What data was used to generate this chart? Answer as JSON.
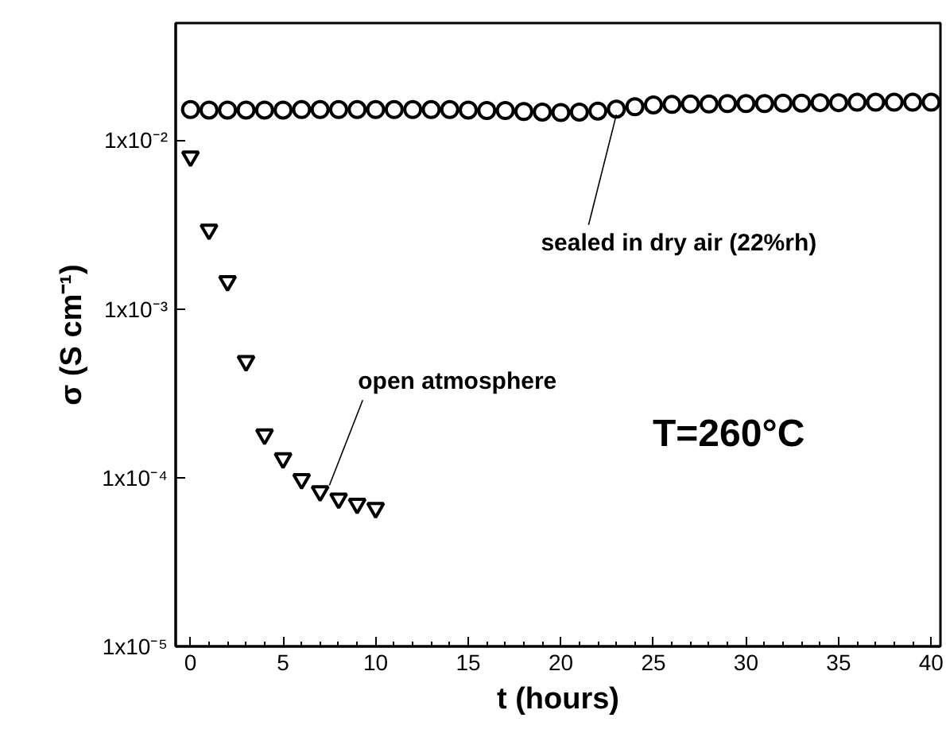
{
  "chart_data": {
    "type": "scatter",
    "xlabel": "t (hours)",
    "ylabel": "σ (S cm⁻¹)",
    "log": "y",
    "grid": false,
    "xlim": [
      -0.8,
      40.5
    ],
    "xticks": [
      0,
      5,
      10,
      15,
      20,
      25,
      30,
      35,
      40
    ],
    "ylim": [
      1e-05,
      0.0495
    ],
    "yticks": [
      {
        "value": 1e-05,
        "label": "1x10⁻⁵"
      },
      {
        "value": 0.0001,
        "label": "1x10⁻⁴"
      },
      {
        "value": 0.001,
        "label": "1x10⁻³"
      },
      {
        "value": 0.01,
        "label": "1x10⁻²"
      }
    ],
    "series": [
      {
        "color": "#000000",
        "marker": "circle",
        "x": [
          0,
          1,
          2,
          3,
          4,
          5,
          6,
          7,
          8,
          9,
          10,
          11,
          12,
          13,
          14,
          15,
          16,
          17,
          18,
          19,
          20,
          21,
          22,
          23,
          24,
          25,
          26,
          27,
          28,
          29,
          30,
          31,
          32,
          33,
          34,
          35,
          36,
          37,
          38,
          39,
          40
        ],
        "values": [
          0.0152,
          0.0151,
          0.0151,
          0.0151,
          0.0151,
          0.0151,
          0.0152,
          0.0152,
          0.0152,
          0.0152,
          0.0152,
          0.0152,
          0.0152,
          0.0152,
          0.0152,
          0.0151,
          0.015,
          0.015,
          0.0148,
          0.0147,
          0.0146,
          0.0147,
          0.0149,
          0.0153,
          0.0158,
          0.0162,
          0.0163,
          0.0164,
          0.0164,
          0.0165,
          0.0165,
          0.0165,
          0.0166,
          0.0166,
          0.0167,
          0.0167,
          0.0168,
          0.0168,
          0.0168,
          0.0168,
          0.0168
        ]
      },
      {
        "color": "#000000",
        "marker": "triangle",
        "x": [
          0,
          1,
          2,
          3,
          4,
          5,
          6,
          7,
          8,
          9,
          10
        ],
        "values": [
          0.008,
          0.00295,
          0.00146,
          0.00049,
          0.00018,
          0.00013,
          9.8e-05,
          8.3e-05,
          7.5e-05,
          7e-05,
          6.6e-05
        ]
      }
    ],
    "annotations": [
      {
        "text": "open atmosphere",
        "x": 7.5,
        "y": 9e-05
      },
      {
        "text": "sealed in dry air (22%rh)",
        "x": 23,
        "y": 0.0142
      },
      "T=260°C"
    ]
  }
}
